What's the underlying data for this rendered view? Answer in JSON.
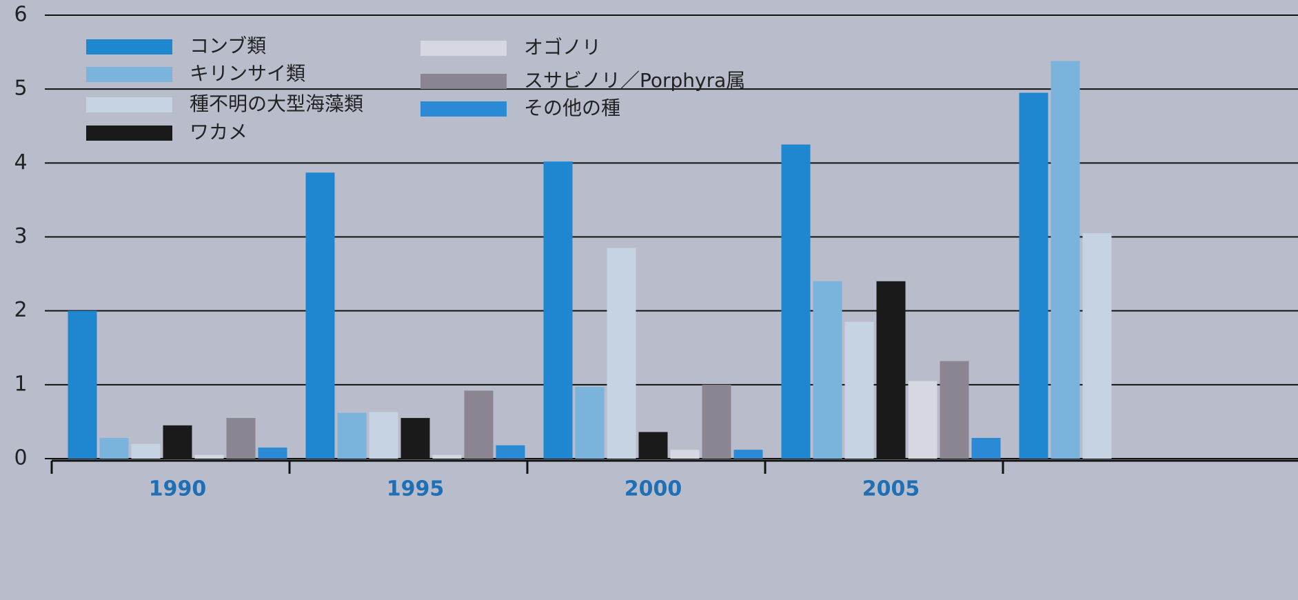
{
  "chart_data": {
    "type": "bar",
    "categories": [
      "1990",
      "1995",
      "2000",
      "2005",
      null
    ],
    "series": [
      {
        "name": "コンブ類",
        "color": "#1f86d0",
        "values": [
          2.0,
          3.87,
          4.02,
          4.25,
          4.95
        ]
      },
      {
        "name": "キリンサイ類",
        "color": "#7ab4dc",
        "values": [
          0.28,
          0.62,
          0.97,
          2.4,
          5.38
        ]
      },
      {
        "name": "種不明の大型海藻類",
        "color": "#c5d3e2",
        "values": [
          0.2,
          0.63,
          2.85,
          1.85,
          3.05
        ]
      },
      {
        "name": "ワカメ",
        "color": "#1a1a1a",
        "values": [
          0.45,
          0.55,
          0.36,
          2.4,
          null
        ]
      },
      {
        "name": "オゴノリ",
        "color": "#d5d8e0",
        "values": [
          0.05,
          0.05,
          0.12,
          1.05,
          null
        ]
      },
      {
        "name": "スサビノリ／Porphyra属",
        "color": "#8a8590",
        "values": [
          0.55,
          0.92,
          1.0,
          1.32,
          null
        ]
      },
      {
        "name": "その他の種",
        "color": "#2a8ad6",
        "values": [
          0.15,
          0.18,
          0.12,
          0.28,
          null
        ]
      }
    ],
    "ylim": [
      0,
      6
    ],
    "yticks": [
      0,
      1,
      2,
      3,
      4,
      5,
      6
    ],
    "grid": true
  }
}
